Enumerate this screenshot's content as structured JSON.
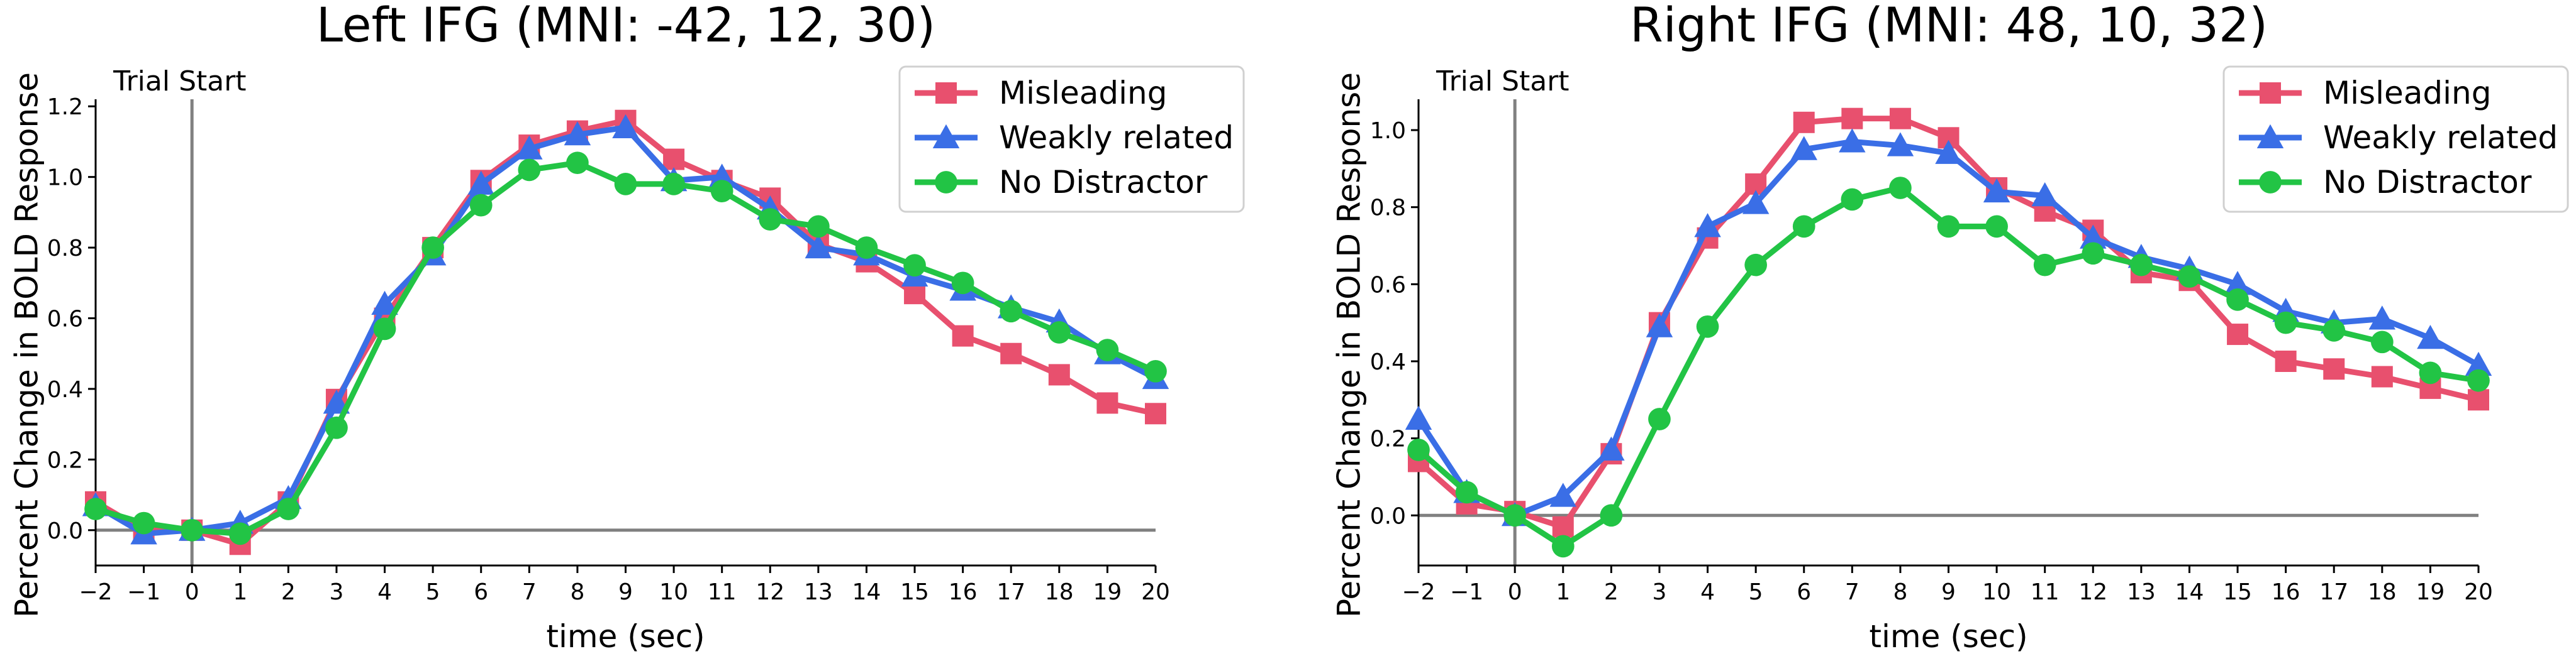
{
  "chart_data": [
    {
      "type": "line",
      "title": "Left IFG (MNI: -42, 12, 30)",
      "xlabel": "time (sec)",
      "ylabel": "Percent Change in BOLD Response",
      "xlim": [
        -2,
        20
      ],
      "ylim": [
        -0.1,
        1.22
      ],
      "x": [
        -2,
        -1,
        0,
        1,
        2,
        3,
        4,
        5,
        6,
        7,
        8,
        9,
        10,
        11,
        12,
        13,
        14,
        15,
        16,
        17,
        18,
        19,
        20
      ],
      "x_ticks": [
        -2,
        -1,
        0,
        1,
        2,
        3,
        4,
        5,
        6,
        7,
        8,
        9,
        10,
        11,
        12,
        13,
        14,
        15,
        16,
        17,
        18,
        19,
        20
      ],
      "x_tick_labels": [
        "−2",
        "−1",
        "0",
        "1",
        "2",
        "3",
        "4",
        "5",
        "6",
        "7",
        "8",
        "9",
        "10",
        "11",
        "12",
        "13",
        "14",
        "15",
        "16",
        "17",
        "18",
        "19",
        "20"
      ],
      "y_ticks": [
        0.0,
        0.2,
        0.4,
        0.6,
        0.8,
        1.0,
        1.2
      ],
      "y_tick_labels": [
        "0.0",
        "0.2",
        "0.4",
        "0.6",
        "0.8",
        "1.0",
        "1.2"
      ],
      "annotation": "Trial Start",
      "legend_position": "top-right",
      "grid": false,
      "series": [
        {
          "name": "Misleading",
          "color": "#e8506e",
          "marker": "square",
          "values": [
            0.08,
            0.0,
            0.0,
            -0.04,
            0.08,
            0.37,
            0.6,
            0.8,
            0.99,
            1.09,
            1.13,
            1.16,
            1.05,
            0.99,
            0.94,
            0.81,
            0.76,
            0.67,
            0.55,
            0.5,
            0.44,
            0.36,
            0.33
          ]
        },
        {
          "name": "Weakly related",
          "color": "#3a6ee6",
          "marker": "triangle",
          "values": [
            0.07,
            -0.01,
            0.0,
            0.02,
            0.09,
            0.36,
            0.64,
            0.78,
            0.98,
            1.08,
            1.12,
            1.14,
            0.99,
            1.0,
            0.91,
            0.8,
            0.78,
            0.72,
            0.68,
            0.63,
            0.59,
            0.5,
            0.43
          ]
        },
        {
          "name": "No Distractor",
          "color": "#22c445",
          "marker": "circle",
          "values": [
            0.06,
            0.02,
            0.0,
            -0.01,
            0.06,
            0.29,
            0.57,
            0.8,
            0.92,
            1.02,
            1.04,
            0.98,
            0.98,
            0.96,
            0.88,
            0.86,
            0.8,
            0.75,
            0.7,
            0.62,
            0.56,
            0.51,
            0.45
          ]
        }
      ]
    },
    {
      "type": "line",
      "title": "Right IFG (MNI: 48, 10, 32)",
      "xlabel": "time (sec)",
      "ylabel": "Percent Change in BOLD Response",
      "xlim": [
        -2,
        20
      ],
      "ylim": [
        -0.13,
        1.08
      ],
      "x": [
        -2,
        -1,
        0,
        1,
        2,
        3,
        4,
        5,
        6,
        7,
        8,
        9,
        10,
        11,
        12,
        13,
        14,
        15,
        16,
        17,
        18,
        19,
        20
      ],
      "x_ticks": [
        -2,
        -1,
        0,
        1,
        2,
        3,
        4,
        5,
        6,
        7,
        8,
        9,
        10,
        11,
        12,
        13,
        14,
        15,
        16,
        17,
        18,
        19,
        20
      ],
      "x_tick_labels": [
        "−2",
        "−1",
        "0",
        "1",
        "2",
        "3",
        "4",
        "5",
        "6",
        "7",
        "8",
        "9",
        "10",
        "11",
        "12",
        "13",
        "14",
        "15",
        "16",
        "17",
        "18",
        "19",
        "20"
      ],
      "y_ticks": [
        0.0,
        0.2,
        0.4,
        0.6,
        0.8,
        1.0
      ],
      "y_tick_labels": [
        "0.0",
        "0.2",
        "0.4",
        "0.6",
        "0.8",
        "1.0"
      ],
      "annotation": "Trial Start",
      "legend_position": "top-right",
      "grid": false,
      "series": [
        {
          "name": "Misleading",
          "color": "#e8506e",
          "marker": "square",
          "values": [
            0.14,
            0.03,
            0.01,
            -0.03,
            0.16,
            0.5,
            0.72,
            0.86,
            1.02,
            1.03,
            1.03,
            0.98,
            0.85,
            0.79,
            0.74,
            0.63,
            0.61,
            0.47,
            0.4,
            0.38,
            0.36,
            0.33,
            0.3
          ]
        },
        {
          "name": "Weakly related",
          "color": "#3a6ee6",
          "marker": "triangle",
          "values": [
            0.25,
            0.06,
            0.0,
            0.05,
            0.17,
            0.49,
            0.75,
            0.81,
            0.95,
            0.97,
            0.96,
            0.94,
            0.84,
            0.83,
            0.72,
            0.67,
            0.64,
            0.6,
            0.53,
            0.5,
            0.51,
            0.46,
            0.39
          ]
        },
        {
          "name": "No Distractor",
          "color": "#22c445",
          "marker": "circle",
          "values": [
            0.17,
            0.06,
            0.0,
            -0.08,
            0.0,
            0.25,
            0.49,
            0.65,
            0.75,
            0.82,
            0.85,
            0.75,
            0.75,
            0.65,
            0.68,
            0.65,
            0.62,
            0.56,
            0.5,
            0.48,
            0.45,
            0.37,
            0.35
          ]
        }
      ]
    }
  ]
}
